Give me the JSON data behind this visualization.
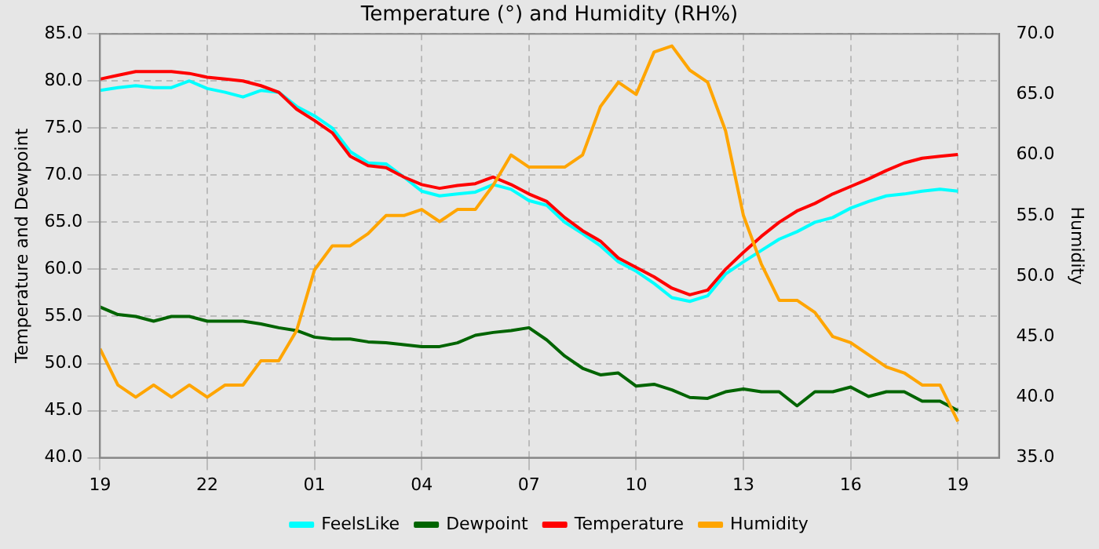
{
  "chart_data": {
    "type": "line",
    "title": "Temperature (°) and Humidity (RH%)",
    "ylabel": "Temperature and Dewpoint",
    "y2label": "Humidity",
    "x": [
      "--01-01T19:00",
      "--01-01T19:30",
      "--01-01T20:00",
      "--01-01T20:30",
      "--01-01T21:00",
      "--01-01T21:30",
      "--01-01T22:00",
      "--01-01T22:30",
      "--01-01T23:00",
      "--01-01T23:30",
      "--01-02T00:00",
      "--01-02T00:30",
      "--01-02T01:00",
      "--01-02T01:30",
      "--01-02T02:00",
      "--01-02T02:30",
      "--01-02T03:00",
      "--01-02T03:30",
      "--01-02T04:00",
      "--01-02T04:30",
      "--01-02T05:00",
      "--01-02T05:30",
      "--01-02T06:00",
      "--01-02T06:30",
      "--01-02T07:00",
      "--01-02T07:30",
      "--01-02T08:00",
      "--01-02T08:30",
      "--01-02T09:00",
      "--01-02T09:30",
      "--01-02T10:00",
      "--01-02T10:30",
      "--01-02T11:00",
      "--01-02T11:30",
      "--01-02T12:00",
      "--01-02T12:30",
      "--01-02T13:00",
      "--01-02T13:30",
      "--01-02T14:00",
      "--01-02T14:30",
      "--01-02T15:00",
      "--01-02T15:30",
      "--01-02T16:00",
      "--01-02T16:30",
      "--01-02T17:00",
      "--01-02T17:30",
      "--01-02T18:00",
      "--01-02T18:30",
      "--01-02T19:00"
    ],
    "series": [
      {
        "name": "FeelsLike",
        "color": "#00ffff",
        "values": [
          79.0,
          79.3,
          79.5,
          79.3,
          79.3,
          80.0,
          79.2,
          78.8,
          78.3,
          79.0,
          78.8,
          77.3,
          76.3,
          75.0,
          72.5,
          71.3,
          71.2,
          69.8,
          68.3,
          67.8,
          68.0,
          68.2,
          69.0,
          68.5,
          67.3,
          66.8,
          65.0,
          63.8,
          62.5,
          60.8,
          59.8,
          58.5,
          57.0,
          56.6,
          57.2,
          59.5,
          60.8,
          62.0,
          63.2,
          64.0,
          65.0,
          65.5,
          66.5,
          67.2,
          67.8,
          68.0,
          68.3,
          68.5,
          68.3
        ]
      },
      {
        "name": "Dewpoint",
        "color": "#006400",
        "values": [
          56.0,
          55.2,
          55.0,
          54.5,
          55.0,
          55.0,
          54.5,
          54.5,
          54.5,
          54.2,
          53.8,
          53.5,
          52.8,
          52.6,
          52.6,
          52.3,
          52.2,
          52.0,
          51.8,
          51.8,
          52.2,
          53.0,
          53.3,
          53.5,
          53.8,
          52.5,
          50.8,
          49.5,
          48.8,
          49.0,
          47.6,
          47.8,
          47.2,
          46.4,
          46.3,
          47.0,
          47.3,
          47.0,
          47.0,
          45.5,
          47.0,
          47.0,
          47.5,
          46.5,
          47.0,
          47.0,
          46.0,
          46.0,
          45.0
        ]
      },
      {
        "name": "Temperature",
        "color": "#ff0000",
        "values": [
          80.2,
          80.6,
          81.0,
          81.0,
          81.0,
          80.8,
          80.4,
          80.2,
          80.0,
          79.5,
          78.8,
          77.0,
          75.8,
          74.5,
          72.0,
          71.0,
          70.8,
          69.8,
          69.0,
          68.6,
          68.9,
          69.1,
          69.8,
          69.0,
          68.0,
          67.2,
          65.5,
          64.1,
          63.0,
          61.2,
          60.2,
          59.2,
          58.0,
          57.3,
          57.8,
          60.0,
          61.8,
          63.5,
          65.0,
          66.2,
          67.0,
          68.0,
          68.8,
          69.6,
          70.5,
          71.3,
          71.8,
          72.0,
          72.2
        ]
      },
      {
        "name": "Humidity",
        "color": "#ffa500",
        "axis": "y2",
        "values": [
          44,
          41,
          40,
          41,
          40,
          41,
          40,
          41,
          41,
          43,
          43,
          45.5,
          50.5,
          52.5,
          52.5,
          53.5,
          55.0,
          55.0,
          55.5,
          54.5,
          55.5,
          55.5,
          57.5,
          60.0,
          59.0,
          59.0,
          59.0,
          60.0,
          64.0,
          66.0,
          65.0,
          68.5,
          69.0,
          67.0,
          66.0,
          62.0,
          55.0,
          51.0,
          48.0,
          48.0,
          47.0,
          45.0,
          44.5,
          43.5,
          42.5,
          42.0,
          41.0,
          41.0,
          38.0
        ]
      }
    ],
    "xlim": [
      "--01-01T19:00",
      "--01-02T20:09"
    ],
    "xticks": [
      {
        "value": "--01-01T19:00",
        "label": "19"
      },
      {
        "value": "--01-01T22:00",
        "label": "22"
      },
      {
        "value": "--01-02T01:00",
        "label": "01"
      },
      {
        "value": "--01-02T04:00",
        "label": "04"
      },
      {
        "value": "--01-02T07:00",
        "label": "07"
      },
      {
        "value": "--01-02T10:00",
        "label": "10"
      },
      {
        "value": "--01-02T13:00",
        "label": "13"
      },
      {
        "value": "--01-02T16:00",
        "label": "16"
      },
      {
        "value": "--01-02T19:00",
        "label": "19"
      }
    ],
    "ylim": [
      40,
      85
    ],
    "yticks": [
      {
        "value": 40,
        "label": "40.0"
      },
      {
        "value": 45,
        "label": "45.0"
      },
      {
        "value": 50,
        "label": "50.0"
      },
      {
        "value": 55,
        "label": "55.0"
      },
      {
        "value": 60,
        "label": "60.0"
      },
      {
        "value": 65,
        "label": "65.0"
      },
      {
        "value": 70,
        "label": "70.0"
      },
      {
        "value": 75,
        "label": "75.0"
      },
      {
        "value": 80,
        "label": "80.0"
      },
      {
        "value": 85,
        "label": "85.0"
      }
    ],
    "y2lim": [
      35,
      70
    ],
    "y2ticks": [
      {
        "value": 35,
        "label": "35.0"
      },
      {
        "value": 40,
        "label": "40.0"
      },
      {
        "value": 45,
        "label": "45.0"
      },
      {
        "value": 50,
        "label": "50.0"
      },
      {
        "value": 55,
        "label": "55.0"
      },
      {
        "value": 60,
        "label": "60.0"
      },
      {
        "value": 65,
        "label": "65.0"
      },
      {
        "value": 70,
        "label": "70.0"
      }
    ],
    "grid": true,
    "legend": "bottom",
    "marker": "none",
    "line_style": "solid"
  }
}
